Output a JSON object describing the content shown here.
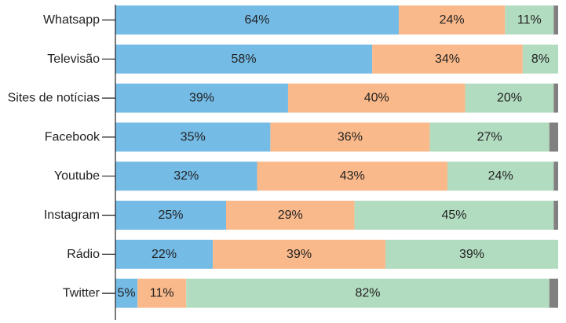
{
  "chart_data": {
    "type": "bar",
    "orientation": "horizontal",
    "stacked": true,
    "xlim": [
      0,
      100
    ],
    "grid": false,
    "legend": "none",
    "categories": [
      "Whatsapp",
      "Televisão",
      "Sites de notícias",
      "Facebook",
      "Youtube",
      "Instagram",
      "Rádio",
      "Twitter"
    ],
    "series": [
      {
        "color": "#74bbe6",
        "values": [
          64,
          58,
          39,
          35,
          32,
          25,
          22,
          5
        ]
      },
      {
        "color": "#fab98a",
        "values": [
          24,
          34,
          40,
          36,
          43,
          29,
          39,
          11
        ]
      },
      {
        "color": "#b2dcc0",
        "values": [
          11,
          8,
          20,
          27,
          24,
          45,
          39,
          82
        ]
      },
      {
        "color": "#808080",
        "values": [
          1,
          0,
          1,
          2,
          1,
          1,
          0,
          2
        ]
      }
    ]
  }
}
